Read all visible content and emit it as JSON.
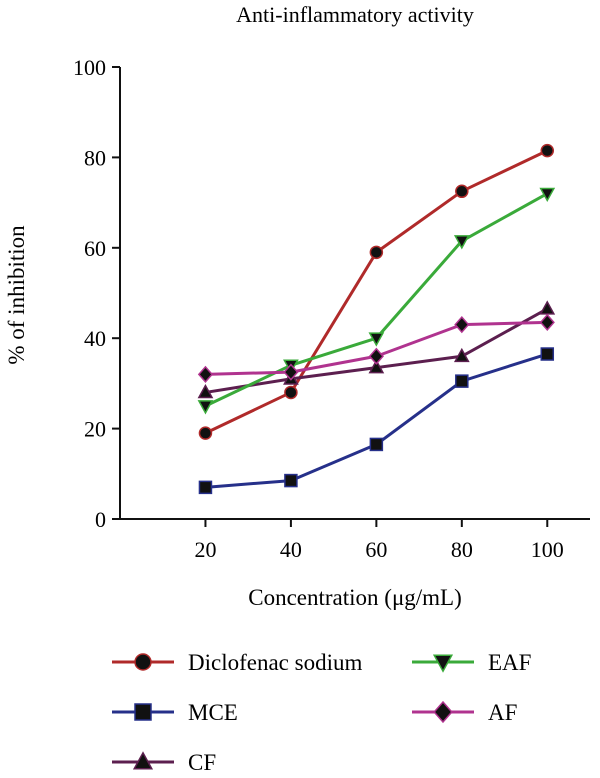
{
  "chart_data": {
    "type": "line",
    "title": "Anti-inflammatory activity",
    "xlabel": "Concentration (μg/mL)",
    "ylabel": "% of inhibition",
    "x": [
      20,
      40,
      60,
      80,
      100
    ],
    "xlim": [
      0,
      110
    ],
    "ylim": [
      0,
      100
    ],
    "xticks": [
      20,
      40,
      60,
      80,
      100
    ],
    "yticks": [
      0,
      20,
      40,
      60,
      80,
      100
    ],
    "grid": false,
    "legend_position": "bottom",
    "series": [
      {
        "name": "Diclofenac sodium",
        "marker": "circle",
        "color": "#b02a2a",
        "values": [
          19,
          28,
          59,
          72.5,
          81.5
        ]
      },
      {
        "name": "MCE",
        "marker": "square",
        "color": "#26308a",
        "values": [
          7,
          8.5,
          16.5,
          30.5,
          36.5
        ]
      },
      {
        "name": "CF",
        "marker": "triangle-up",
        "color": "#5c1f4f",
        "values": [
          28,
          31,
          33.5,
          36,
          46.5
        ]
      },
      {
        "name": "EAF",
        "marker": "triangle-down",
        "color": "#3aaa3a",
        "values": [
          25,
          34,
          40,
          61.5,
          72
        ]
      },
      {
        "name": "AF",
        "marker": "diamond",
        "color": "#b0338f",
        "values": [
          32,
          32.5,
          36,
          43,
          43.5
        ]
      }
    ]
  }
}
